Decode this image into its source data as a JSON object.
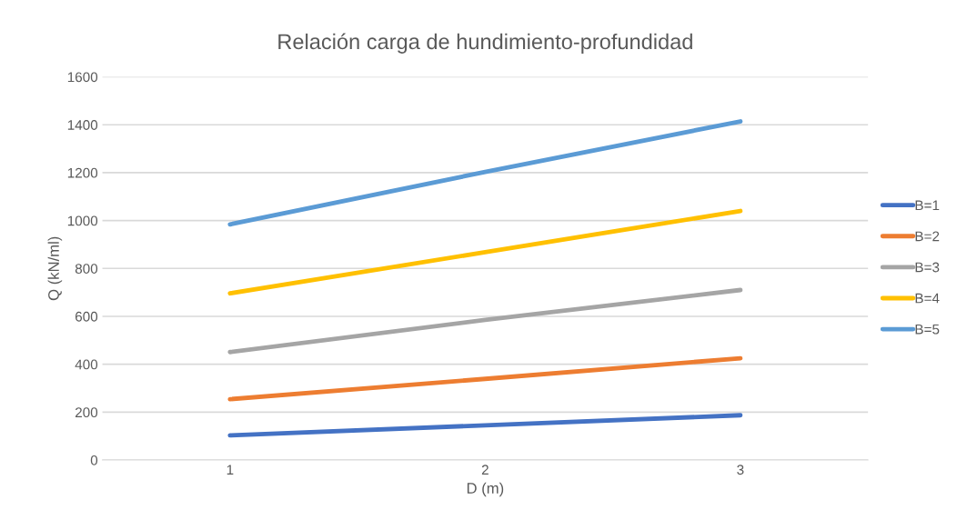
{
  "chart_data": {
    "type": "line",
    "title": "Relación carga de hundimiento-profundidad",
    "xlabel": "D (m)",
    "ylabel": "Q (kN/ml)",
    "categories": [
      "1",
      "2",
      "3"
    ],
    "series": [
      {
        "name": "B=1",
        "color": "#4472c4",
        "values": [
          103,
          145,
          187
        ]
      },
      {
        "name": "B=2",
        "color": "#ed7d31",
        "values": [
          254,
          339,
          425
        ]
      },
      {
        "name": "B=3",
        "color": "#a5a5a5",
        "values": [
          451,
          585,
          710
        ]
      },
      {
        "name": "B=4",
        "color": "#ffc000",
        "values": [
          696,
          868,
          1040
        ]
      },
      {
        "name": "B=5",
        "color": "#5b9bd5",
        "values": [
          984,
          1203,
          1414
        ]
      }
    ],
    "ylim": [
      0,
      1600
    ],
    "yticks": [
      0,
      200,
      400,
      600,
      800,
      1000,
      1200,
      1400,
      1600
    ],
    "grid": "y",
    "legend": "right",
    "marker": "none",
    "line_style": "solid"
  }
}
